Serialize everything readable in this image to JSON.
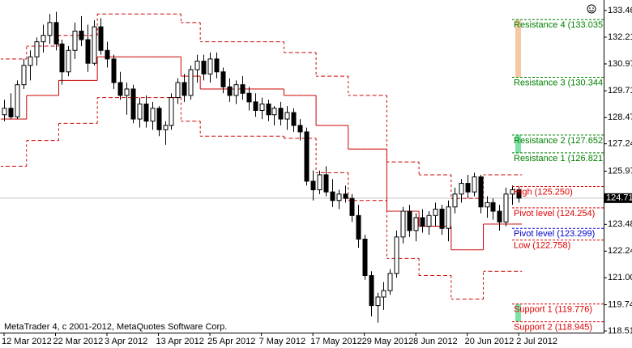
{
  "chart_data": {
    "type": "candlestick",
    "copyright": "MetaTrader 4, c 2001-2012, MetaQuotes Software Corp.",
    "categories": [
      "12 Mar 2012",
      null,
      null,
      null,
      null,
      null,
      null,
      null,
      "22 Mar 2012",
      null,
      null,
      null,
      null,
      null,
      null,
      null,
      "3 Apr 2012",
      null,
      null,
      null,
      null,
      null,
      null,
      null,
      "13 Apr 2012",
      null,
      null,
      null,
      null,
      null,
      null,
      null,
      "25 Apr 2012",
      null,
      null,
      null,
      null,
      null,
      null,
      null,
      "7 May 2012",
      null,
      null,
      null,
      null,
      null,
      null,
      null,
      "17 May 2012",
      null,
      null,
      null,
      null,
      null,
      null,
      null,
      "29 May 2012",
      null,
      null,
      null,
      null,
      null,
      null,
      null,
      "8 Jun 2012",
      null,
      null,
      null,
      null,
      null,
      null,
      null,
      "20 Jun 2012",
      null,
      null,
      null,
      null,
      null,
      null,
      null,
      "2 Jul 2012"
    ],
    "open": [
      128.6,
      128.9,
      128.5,
      130.0,
      130.9,
      131.3,
      132.0,
      132.3,
      132.9,
      131.9,
      130.6,
      131.6,
      132.5,
      132.1,
      131.0,
      132.7,
      131.6,
      131.2,
      130.1,
      129.5,
      129.8,
      128.4,
      129.1,
      128.3,
      128.9,
      127.9,
      128.1,
      129.4,
      130.1,
      129.5,
      130.7,
      131.1,
      130.5,
      131.2,
      130.6,
      129.9,
      129.5,
      130.0,
      129.6,
      129.2,
      128.8,
      129.1,
      128.6,
      128.9,
      128.4,
      128.7,
      128.1,
      127.8,
      125.5,
      125.1,
      125.8,
      125.0,
      124.6,
      124.9,
      124.7,
      123.9,
      122.8,
      121.1,
      119.7,
      120.1,
      120.4,
      121.2,
      122.9,
      124.1,
      123.2,
      123.8,
      123.4,
      123.9,
      124.2,
      123.3,
      124.3,
      124.9,
      125.4,
      125.0,
      125.7,
      124.3,
      124.5,
      124.1,
      123.6,
      124.9,
      125.1
    ],
    "high": [
      129.3,
      129.6,
      130.2,
      131.2,
      131.6,
      132.2,
      132.8,
      133.3,
      133.4,
      132.1,
      131.8,
      132.9,
      133.2,
      132.8,
      133.0,
      133.1,
      132.0,
      131.4,
      130.6,
      130.1,
      130.0,
      129.4,
      129.5,
      129.2,
      129.0,
      128.3,
      129.6,
      130.3,
      130.5,
      130.9,
      131.4,
      131.4,
      131.5,
      131.5,
      130.8,
      130.3,
      130.2,
      130.4,
      129.9,
      129.6,
      129.4,
      129.3,
      129.0,
      129.2,
      129.0,
      128.9,
      128.4,
      128.0,
      126.0,
      126.0,
      126.2,
      125.6,
      125.1,
      125.3,
      124.9,
      124.4,
      123.0,
      121.3,
      120.3,
      120.8,
      121.4,
      123.2,
      124.3,
      124.4,
      124.0,
      124.2,
      124.1,
      124.5,
      124.4,
      124.6,
      125.2,
      125.6,
      125.8,
      125.9,
      125.8,
      124.8,
      124.7,
      124.4,
      125.2,
      125.3,
      125.25
    ],
    "low": [
      128.3,
      128.4,
      128.4,
      129.8,
      130.2,
      130.9,
      131.5,
      131.9,
      131.6,
      130.0,
      130.4,
      131.2,
      131.8,
      130.6,
      130.9,
      131.4,
      130.8,
      129.8,
      129.3,
      128.6,
      128.2,
      128.0,
      128.0,
      127.9,
      127.6,
      127.2,
      127.9,
      129.1,
      129.2,
      129.3,
      130.1,
      130.2,
      130.1,
      130.3,
      129.6,
      129.2,
      129.1,
      129.3,
      128.8,
      128.5,
      128.4,
      128.3,
      128.1,
      128.1,
      127.9,
      127.8,
      127.4,
      125.3,
      124.6,
      124.9,
      124.8,
      124.3,
      124.2,
      124.5,
      123.6,
      122.4,
      120.9,
      119.2,
      118.9,
      119.5,
      120.2,
      121.0,
      122.6,
      122.9,
      122.7,
      123.1,
      123.0,
      123.4,
      123.0,
      122.7,
      124.0,
      124.5,
      124.7,
      124.8,
      124.0,
      123.8,
      123.7,
      123.2,
      123.4,
      124.4,
      124.5
    ],
    "close": [
      128.9,
      128.5,
      130.0,
      130.9,
      131.3,
      132.0,
      132.3,
      132.9,
      131.9,
      130.6,
      131.6,
      132.5,
      132.1,
      131.0,
      132.7,
      131.6,
      131.2,
      130.1,
      129.5,
      129.8,
      128.4,
      129.1,
      128.3,
      128.9,
      127.9,
      128.1,
      129.4,
      130.1,
      129.5,
      130.7,
      131.1,
      130.5,
      131.2,
      130.6,
      129.9,
      129.5,
      130.0,
      129.6,
      129.2,
      128.8,
      129.1,
      128.6,
      128.9,
      128.4,
      128.7,
      128.1,
      127.8,
      125.5,
      125.1,
      125.8,
      125.0,
      124.6,
      124.9,
      124.7,
      123.9,
      122.8,
      121.1,
      119.7,
      120.1,
      120.4,
      121.2,
      122.9,
      124.1,
      123.2,
      123.8,
      123.4,
      123.9,
      124.2,
      123.3,
      124.3,
      124.9,
      125.4,
      125.0,
      125.7,
      124.3,
      124.5,
      124.1,
      123.6,
      124.9,
      125.1,
      124.711
    ],
    "lines": [
      {
        "color": "#cc0000",
        "dashed": true,
        "values": [
          131.2,
          131.2,
          131.2,
          131.2,
          131.8,
          131.8,
          131.8,
          131.8,
          131.8,
          132.3,
          132.3,
          132.3,
          132.3,
          132.3,
          132.3,
          133.3,
          133.3,
          133.3,
          133.3,
          133.3,
          133.3,
          133.3,
          133.3,
          133.3,
          133.3,
          133.3,
          133.3,
          133.3,
          132.9,
          132.9,
          132.9,
          132.0,
          132.0,
          132.0,
          132.0,
          132.0,
          132.0,
          132.0,
          132.0,
          132.0,
          132.0,
          132.0,
          132.0,
          132.0,
          131.5,
          131.5,
          131.5,
          131.5,
          131.5,
          130.4,
          130.4,
          130.4,
          130.4,
          130.4,
          129.5,
          129.5,
          129.5,
          129.5,
          129.5,
          129.5,
          126.4,
          126.4,
          126.4,
          126.4,
          126.4,
          125.8,
          125.8,
          125.8,
          125.8,
          125.8,
          124.7,
          124.7,
          124.7,
          124.7,
          124.7,
          125.8,
          125.8,
          125.8,
          125.8,
          125.8,
          125.8
        ]
      },
      {
        "color": "#cc0000",
        "dashed": false,
        "values": [
          128.4,
          128.4,
          128.4,
          128.4,
          129.5,
          129.5,
          129.5,
          129.5,
          129.5,
          130.2,
          130.2,
          130.2,
          130.2,
          130.2,
          130.2,
          131.3,
          131.3,
          131.3,
          131.3,
          131.3,
          131.3,
          131.3,
          131.3,
          131.3,
          131.3,
          131.3,
          131.3,
          131.3,
          130.4,
          130.4,
          130.4,
          129.8,
          129.8,
          129.8,
          129.8,
          129.8,
          129.8,
          129.8,
          129.8,
          129.8,
          129.8,
          129.8,
          129.8,
          129.8,
          129.5,
          129.5,
          129.5,
          129.5,
          129.5,
          128.1,
          128.1,
          128.1,
          128.1,
          128.1,
          127.0,
          127.0,
          127.0,
          127.0,
          127.0,
          127.0,
          124.1,
          124.1,
          124.1,
          124.1,
          124.1,
          123.4,
          123.4,
          123.4,
          123.4,
          123.4,
          122.3,
          122.3,
          122.3,
          122.3,
          122.3,
          123.5,
          123.5,
          123.5,
          123.5,
          123.5,
          123.5
        ]
      },
      {
        "color": "#cc0000",
        "dashed": true,
        "values": [
          126.2,
          126.2,
          126.2,
          126.2,
          127.4,
          127.4,
          127.4,
          127.4,
          127.4,
          128.2,
          128.2,
          128.2,
          128.2,
          128.2,
          128.2,
          129.4,
          129.4,
          129.4,
          129.4,
          129.4,
          129.4,
          129.4,
          129.4,
          129.4,
          129.4,
          129.4,
          129.4,
          129.4,
          128.3,
          128.3,
          128.3,
          127.6,
          127.6,
          127.6,
          127.6,
          127.6,
          127.6,
          127.6,
          127.6,
          127.6,
          127.6,
          127.6,
          127.6,
          127.6,
          127.5,
          127.5,
          127.5,
          127.5,
          127.5,
          125.9,
          125.9,
          125.9,
          125.9,
          125.9,
          124.6,
          124.6,
          124.6,
          124.6,
          124.6,
          124.6,
          121.9,
          121.9,
          121.9,
          121.9,
          121.9,
          121.1,
          121.1,
          121.1,
          121.1,
          121.1,
          120.0,
          120.0,
          120.0,
          120.0,
          120.0,
          121.3,
          121.3,
          121.3,
          121.3,
          121.3,
          121.3
        ]
      }
    ],
    "levels": [
      {
        "label": "Resistance 4 (133.035",
        "value": 133.035,
        "color": "#008000"
      },
      {
        "label": "Resistance 3 (130.344",
        "value": 130.344,
        "color": "#008000"
      },
      {
        "label": "Resistance 2 (127.652",
        "value": 127.652,
        "color": "#008000"
      },
      {
        "label": "Resistance 1 (126.821)",
        "value": 126.821,
        "color": "#008000"
      },
      {
        "label": "High (125.250)",
        "value": 125.25,
        "color": "#dd0000"
      },
      {
        "label": "Pivot level (124.254)",
        "value": 124.254,
        "color": "#dd0000"
      },
      {
        "label": "Pivot level (123.299)",
        "value": 123.299,
        "color": "#0000cc"
      },
      {
        "label": "Low (122.758)",
        "value": 122.758,
        "color": "#dd0000"
      },
      {
        "label": "Support 1 (119.776)",
        "value": 119.776,
        "color": "#dd0000"
      },
      {
        "label": "Support 2 (118.945)",
        "value": 118.945,
        "color": "#dd0000"
      }
    ],
    "last_price": 124.711,
    "ylim": [
      118.44,
      133.95
    ],
    "yticks": [
      {
        "value": 133.46,
        "label": "133.460"
      },
      132.215,
      {
        "value": 130.97,
        "label": "130.970"
      },
      129.715,
      {
        "value": 128.47,
        "label": "128.470"
      },
      127.245,
      {
        "value": 125.97,
        "label": "125.970"
      },
      123.485,
      {
        "value": 122.24,
        "label": "122.240"
      },
      {
        "value": 121,
        "label": "121.000"
      },
      {
        "value": 119.74,
        "label": "119.740"
      },
      118.515
    ]
  }
}
